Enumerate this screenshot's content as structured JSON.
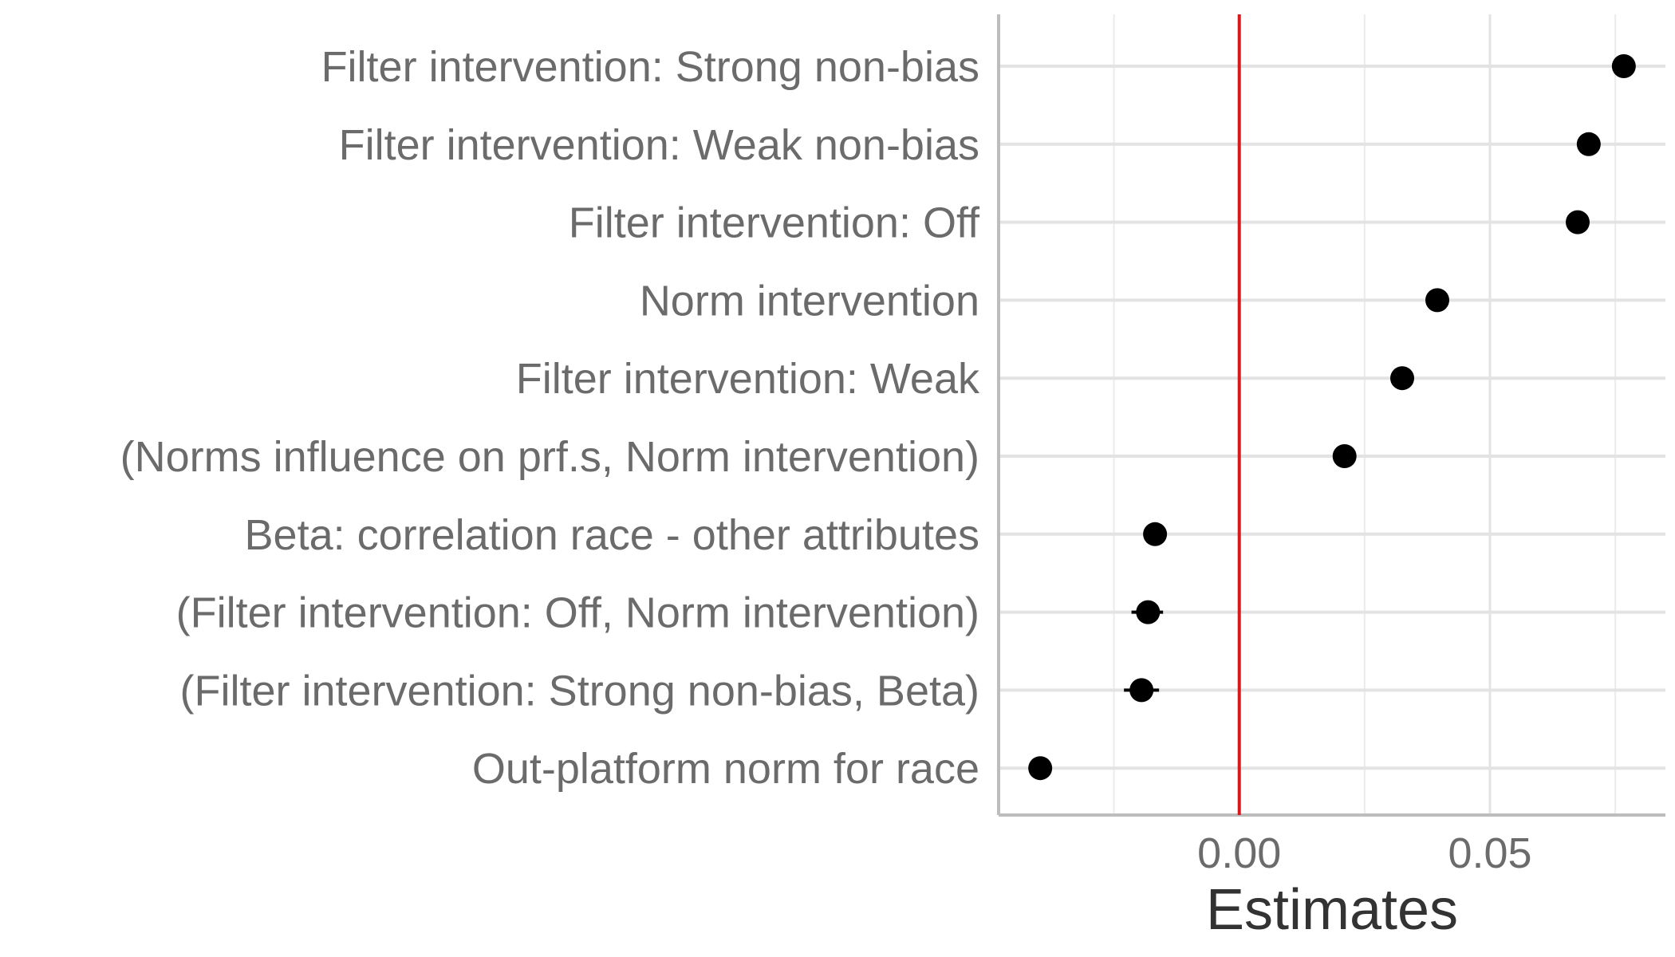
{
  "chart_data": {
    "type": "scatter",
    "title": "",
    "xlabel": "Estimates",
    "ylabel": "",
    "xlim": [
      -0.048,
      0.085
    ],
    "grid": true,
    "reference_line": {
      "x": 0.0,
      "color": "#d7191c"
    },
    "x_ticks": [
      {
        "value": 0.0,
        "label": "0.00"
      },
      {
        "value": 0.05,
        "label": "0.05"
      }
    ],
    "categories": [
      "Filter intervention: Strong non-bias",
      "Filter intervention: Weak non-bias",
      "Filter intervention: Off",
      "Norm intervention",
      "Filter intervention: Weak",
      "(Norms influence on prf.s, Norm intervention)",
      "Beta: correlation race - other attributes",
      "(Filter intervention: Off, Norm intervention)",
      "(Filter intervention: Strong non-bias, Beta)",
      "Out-platform norm for race"
    ],
    "series": [
      {
        "values": [
          0.0767,
          0.0697,
          0.0675,
          0.0395,
          0.0325,
          0.021,
          -0.0168,
          -0.0182,
          -0.0195,
          -0.0397
        ],
        "ci_low": [
          0.0761,
          0.0692,
          0.067,
          0.039,
          0.032,
          0.0205,
          -0.0178,
          -0.0215,
          -0.023,
          -0.0402
        ],
        "ci_high": [
          0.0773,
          0.0702,
          0.068,
          0.04,
          0.033,
          0.0215,
          -0.0158,
          -0.0152,
          -0.016,
          -0.0392
        ]
      }
    ]
  }
}
